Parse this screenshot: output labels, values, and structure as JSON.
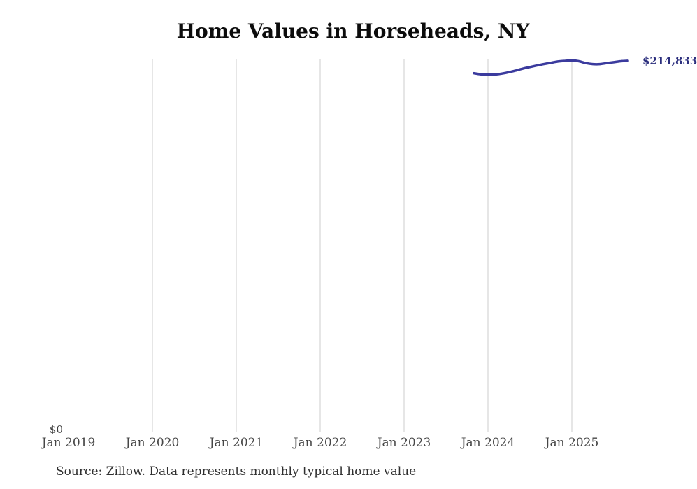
{
  "title": "Home Values in Horseheads, NY",
  "source_note": "Source: Zillow. Data represents monthly typical home value",
  "colors": {
    "background": "#ffffff",
    "line": "#3b3b9e",
    "gridline": "#cccccc",
    "value_label": "#2b2e7d",
    "axis_label": "#464646",
    "title": "#0c0c0c",
    "source": "#2f2f2f"
  },
  "chart_data": {
    "type": "line",
    "title": "Home Values in Horseheads, NY",
    "xlabel": "",
    "ylabel": "",
    "ylim": [
      0,
      216000
    ],
    "grid": "vertical-gridlines-only",
    "legend_position": "none",
    "y_zero_label": "$0",
    "last_value_label": "$214,833",
    "x_tick_labels": [
      {
        "label": "Jan 2019",
        "date": "2019-01"
      },
      {
        "label": "Jan 2020",
        "date": "2020-01"
      },
      {
        "label": "Jan 2021",
        "date": "2021-01"
      },
      {
        "label": "Jan 2022",
        "date": "2022-01"
      },
      {
        "label": "Jan 2023",
        "date": "2023-01"
      },
      {
        "label": "Jan 2024",
        "date": "2024-01"
      },
      {
        "label": "Jan 2025",
        "date": "2025-01"
      }
    ],
    "gridline_months": [
      "2020-01",
      "2021-01",
      "2022-01",
      "2023-01",
      "2024-01",
      "2025-01"
    ],
    "series": [
      {
        "name": "typical-home-value",
        "points": [
          {
            "date": "2023-11",
            "value": 207600
          },
          {
            "date": "2023-12",
            "value": 207000
          },
          {
            "date": "2024-01",
            "value": 206800
          },
          {
            "date": "2024-02",
            "value": 206900
          },
          {
            "date": "2024-03",
            "value": 207400
          },
          {
            "date": "2024-04",
            "value": 208200
          },
          {
            "date": "2024-05",
            "value": 209200
          },
          {
            "date": "2024-06",
            "value": 210300
          },
          {
            "date": "2024-07",
            "value": 211200
          },
          {
            "date": "2024-08",
            "value": 212100
          },
          {
            "date": "2024-09",
            "value": 212900
          },
          {
            "date": "2024-10",
            "value": 213700
          },
          {
            "date": "2024-11",
            "value": 214400
          },
          {
            "date": "2024-12",
            "value": 214800
          },
          {
            "date": "2025-01",
            "value": 215100
          },
          {
            "date": "2025-02",
            "value": 214600
          },
          {
            "date": "2025-03",
            "value": 213500
          },
          {
            "date": "2025-04",
            "value": 212900
          },
          {
            "date": "2025-05",
            "value": 212900
          },
          {
            "date": "2025-06",
            "value": 213500
          },
          {
            "date": "2025-07",
            "value": 214000
          },
          {
            "date": "2025-08",
            "value": 214600
          },
          {
            "date": "2025-09",
            "value": 214833
          }
        ]
      }
    ]
  }
}
